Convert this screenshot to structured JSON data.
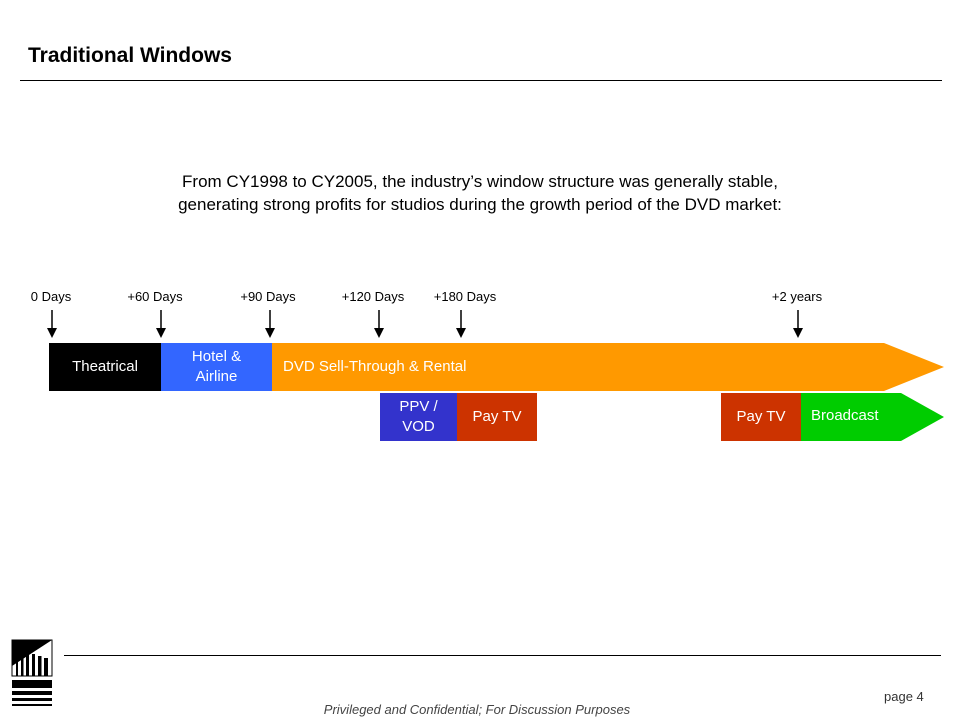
{
  "header": {
    "title": "Traditional Windows"
  },
  "intro": {
    "line1": "From CY1998 to CY2005, the industry’s window structure was generally stable,",
    "line2": "generating strong profits for studios during the growth period of the DVD market:"
  },
  "timeline": {
    "markers": [
      "0 Days",
      "+60 Days",
      "+90 Days",
      "+120 Days",
      "+180 Days",
      "+2 years"
    ],
    "top_row": {
      "theatrical": "Theatrical",
      "hotel_line1": "Hotel &",
      "hotel_line2": "Airline",
      "dvd": "DVD Sell-Through & Rental"
    },
    "bottom_row": {
      "ppv_line1": "PPV /",
      "ppv_line2": "VOD",
      "pay_tv_1": "Pay TV",
      "pay_tv_2": "Pay TV",
      "broadcast": "Broadcast"
    }
  },
  "colors": {
    "theatrical": "#000000",
    "hotel": "#3366ff",
    "dvd": "#ff9900",
    "ppv": "#3333cc",
    "pay_tv": "#cc3300",
    "broadcast": "#00cc00"
  },
  "logo": {
    "brand": "SONY PICTURES HOME ENTERTAINMENT"
  },
  "footer": {
    "confidential": "Privileged and Confidential; For Discussion Purposes",
    "page": "page 4"
  }
}
